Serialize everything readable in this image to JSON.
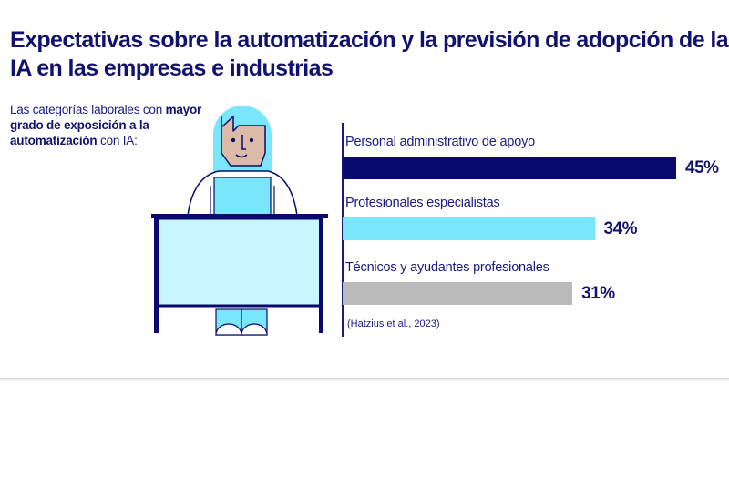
{
  "header": {
    "title": "Expectativas sobre la automatización y la previsión de adopción de la IA en las empresas e industrias"
  },
  "intro": {
    "part1": "Las categorías laborales con ",
    "bold": "mayor grado de exposición a la automatización",
    "part2": " con IA:"
  },
  "illustration": {
    "description": "person-at-desk-with-laptop"
  },
  "colors": {
    "navy": "#0a0a6e",
    "cyan": "#7ae6fb",
    "gray": "#b9b9b9",
    "text": "#12126e"
  },
  "chart_data": {
    "type": "bar",
    "orientation": "horizontal",
    "title": "Las categorías laborales con mayor grado de exposición a la automatización con IA:",
    "categories": [
      "Personal administrativo de apoyo",
      "Profesionales especialistas",
      "Técnicos y ayudantes profesionales"
    ],
    "values": [
      45,
      34,
      31
    ],
    "value_labels": [
      "45%",
      "34%",
      "31%"
    ],
    "bar_colors": [
      "#0a0a6e",
      "#7ae6fb",
      "#b9b9b9"
    ],
    "unit": "%",
    "xlim": [
      0,
      45
    ],
    "grid": false,
    "source": "(Hatzius et al., 2023)"
  }
}
